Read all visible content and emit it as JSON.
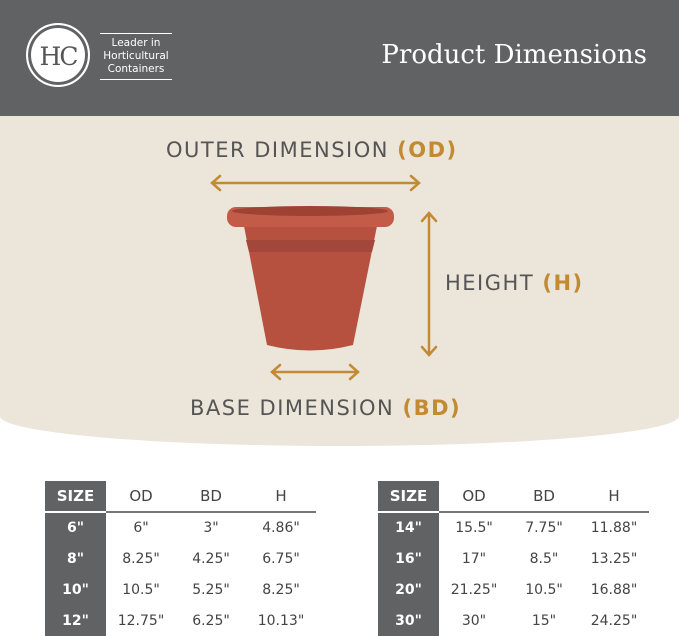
{
  "header": {
    "logo_text": "HC",
    "tagline": [
      "Leader in",
      "Horticultural",
      "Containers"
    ],
    "title": "Product Dimensions"
  },
  "diagram": {
    "outer_label": "OUTER DIMENSION",
    "outer_abbr": "(OD)",
    "height_label": "HEIGHT",
    "height_abbr": "(H)",
    "base_label": "BASE DIMENSION",
    "base_abbr": "(BD)",
    "accent_color": "#c38a34",
    "pot_color": "#b6513f"
  },
  "tables": [
    {
      "headers": [
        "SIZE",
        "OD",
        "BD",
        "H"
      ],
      "rows": [
        [
          "6\"",
          "6\"",
          "3\"",
          "4.86\""
        ],
        [
          "8\"",
          "8.25\"",
          "4.25\"",
          "6.75\""
        ],
        [
          "10\"",
          "10.5\"",
          "5.25\"",
          "8.25\""
        ],
        [
          "12\"",
          "12.75\"",
          "6.25\"",
          "10.13\""
        ]
      ]
    },
    {
      "headers": [
        "SIZE",
        "OD",
        "BD",
        "H"
      ],
      "rows": [
        [
          "14\"",
          "15.5\"",
          "7.75\"",
          "11.88\""
        ],
        [
          "16\"",
          "17\"",
          "8.5\"",
          "13.25\""
        ],
        [
          "20\"",
          "21.25\"",
          "10.5\"",
          "16.88\""
        ],
        [
          "30\"",
          "30\"",
          "15\"",
          "24.25\""
        ]
      ]
    }
  ]
}
